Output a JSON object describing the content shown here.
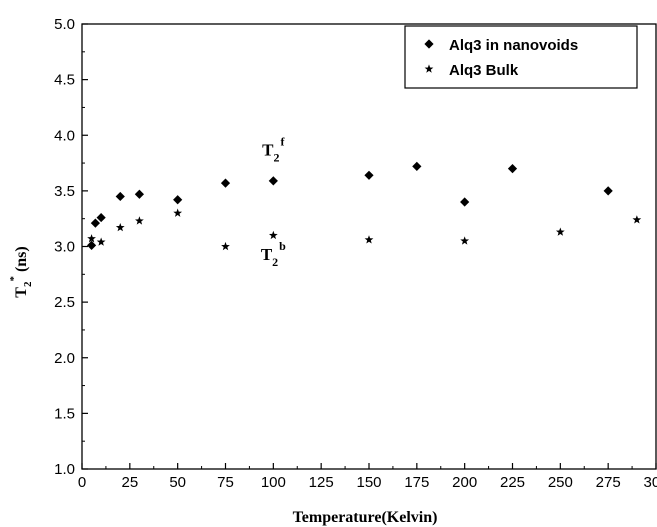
{
  "chart_data": {
    "type": "scatter",
    "title": "",
    "xlabel": "Temperature(Kelvin)",
    "ylabel": {
      "main": "T",
      "sub": "2",
      "sup": "*",
      "unit": " (ns)"
    },
    "xlim": [
      0,
      300
    ],
    "ylim": [
      1.0,
      5.0
    ],
    "xticks": [
      "0",
      "25",
      "50",
      "75",
      "100",
      "125",
      "150",
      "175",
      "200",
      "225",
      "250",
      "275",
      "300"
    ],
    "yticks": [
      "1.0",
      "1.5",
      "2.0",
      "2.5",
      "3.0",
      "3.5",
      "4.0",
      "4.5",
      "5.0"
    ],
    "grid": false,
    "legend_position": "top-right",
    "series": [
      {
        "name": "Alq3 in nanovoids",
        "marker": "diamond",
        "color": "#000000",
        "points": [
          {
            "x": 5,
            "y": 3.01
          },
          {
            "x": 7,
            "y": 3.21
          },
          {
            "x": 10,
            "y": 3.26
          },
          {
            "x": 20,
            "y": 3.45
          },
          {
            "x": 30,
            "y": 3.47
          },
          {
            "x": 50,
            "y": 3.42
          },
          {
            "x": 75,
            "y": 3.57
          },
          {
            "x": 100,
            "y": 3.59
          },
          {
            "x": 150,
            "y": 3.64
          },
          {
            "x": 175,
            "y": 3.72
          },
          {
            "x": 200,
            "y": 3.4
          },
          {
            "x": 225,
            "y": 3.7
          },
          {
            "x": 275,
            "y": 3.5
          }
        ]
      },
      {
        "name": "Alq3 Bulk",
        "marker": "star",
        "color": "#000000",
        "points": [
          {
            "x": 5,
            "y": 3.07
          },
          {
            "x": 10,
            "y": 3.04
          },
          {
            "x": 20,
            "y": 3.17
          },
          {
            "x": 30,
            "y": 3.23
          },
          {
            "x": 50,
            "y": 3.3
          },
          {
            "x": 75,
            "y": 3.0
          },
          {
            "x": 100,
            "y": 3.1
          },
          {
            "x": 150,
            "y": 3.06
          },
          {
            "x": 200,
            "y": 3.05
          },
          {
            "x": 250,
            "y": 3.13
          },
          {
            "x": 290,
            "y": 3.24
          }
        ]
      }
    ],
    "annotations": [
      {
        "id": "tf",
        "main": "T",
        "sub": "2",
        "sup": "f",
        "x": 100,
        "y": 3.82
      },
      {
        "id": "tb",
        "main": "T",
        "sub": "2",
        "sup": "b",
        "x": 100,
        "y": 2.88
      }
    ]
  }
}
